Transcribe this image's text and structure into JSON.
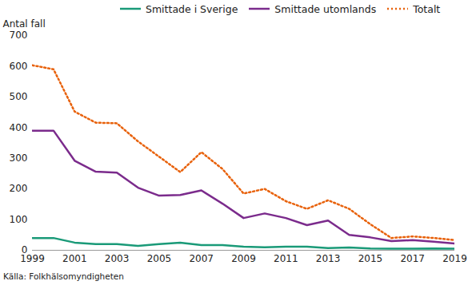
{
  "chart_data": {
    "type": "line",
    "y_label": "Antal fall",
    "source": "Källa: Folkhälsomyndigheten",
    "x": [
      1999,
      2000,
      2001,
      2002,
      2003,
      2004,
      2005,
      2006,
      2007,
      2008,
      2009,
      2010,
      2011,
      2012,
      2013,
      2014,
      2015,
      2016,
      2017,
      2018,
      2019
    ],
    "series": [
      {
        "name": "Smittade i Sverige",
        "color": "#1a9a78",
        "line_style": "solid",
        "values": [
          40,
          40,
          25,
          20,
          20,
          14,
          20,
          25,
          17,
          17,
          12,
          10,
          12,
          12,
          7,
          9,
          6,
          5,
          5,
          6,
          5
        ]
      },
      {
        "name": "Smittade utomlands",
        "color": "#7b2b8c",
        "line_style": "solid",
        "values": [
          390,
          390,
          292,
          256,
          253,
          204,
          178,
          180,
          195,
          152,
          105,
          120,
          105,
          82,
          97,
          50,
          42,
          30,
          33,
          28,
          22
        ]
      },
      {
        "name": "Totalt",
        "color": "#e8620c",
        "line_style": "dotted",
        "values": [
          603,
          590,
          452,
          416,
          414,
          355,
          305,
          255,
          320,
          265,
          185,
          200,
          160,
          135,
          163,
          135,
          85,
          40,
          45,
          40,
          33
        ]
      }
    ],
    "xlim": [
      1999,
      2019
    ],
    "xticks": [
      1999,
      2001,
      2003,
      2005,
      2007,
      2009,
      2011,
      2013,
      2015,
      2017,
      2019
    ],
    "ylim": [
      0,
      700
    ],
    "yticks": [
      0,
      100,
      200,
      300,
      400,
      500,
      600,
      700
    ],
    "grid": false,
    "legend": "top"
  }
}
